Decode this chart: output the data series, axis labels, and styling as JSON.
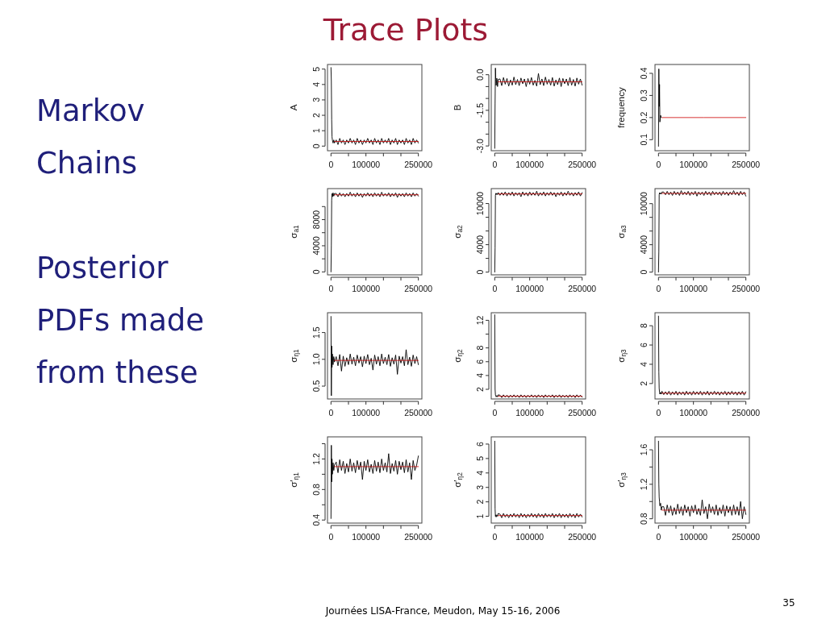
{
  "chart_data": [
    {
      "type": "other",
      "title": "Trace Plots",
      "annotations": [
        "Markov Chains",
        "Posterior PDFs made from these",
        "Journées LISA-France, Meudon, May 15-16, 2006",
        "35"
      ]
    },
    {
      "type": "line",
      "ylabel": "A",
      "x": [
        0,
        1000,
        2000,
        3000,
        4000,
        6000,
        8000,
        10000,
        15000,
        20000,
        25000,
        30000,
        35000,
        40000,
        45000,
        50000,
        55000,
        60000,
        65000,
        70000,
        75000,
        80000,
        85000,
        90000,
        95000,
        100000,
        105000,
        110000,
        115000,
        120000,
        125000,
        130000,
        135000,
        140000,
        145000,
        150000,
        155000,
        160000,
        165000,
        170000,
        175000,
        180000,
        185000,
        190000,
        195000,
        200000,
        205000,
        210000,
        215000,
        220000,
        225000,
        230000,
        235000,
        240000,
        245000,
        250000
      ],
      "xlim": [
        -10000,
        260000
      ],
      "xticks": [
        0,
        {
          "value": 50000,
          "label": null
        },
        100000,
        {
          "value": 150000,
          "label": null
        },
        {
          "value": 200000,
          "label": null
        },
        250000
      ],
      "ylim": [
        -0.3,
        5.3
      ],
      "yticks": [
        0,
        1,
        2,
        3,
        4,
        5
      ],
      "series": [
        {
          "color": "#000000",
          "values": [
            5.1,
            4.2,
            1.7,
            0.6,
            0.4,
            0.2,
            0.4,
            0.2,
            0.4,
            0.1,
            0.5,
            0.2,
            0.4,
            0.1,
            0.4,
            0.2,
            0.5,
            0.2,
            0.4,
            0.1,
            0.5,
            0.2,
            0.4,
            0.1,
            0.4,
            0.2,
            0.5,
            0.2,
            0.4,
            0.1,
            0.5,
            0.2,
            0.4,
            0.1,
            0.5,
            0.2,
            0.4,
            0.2,
            0.5,
            0.1,
            0.4,
            0.2,
            0.5,
            0.1,
            0.4,
            0.2,
            0.4,
            0.1,
            0.5,
            0.2,
            0.4,
            0.1,
            0.5,
            0.2,
            0.4,
            0.2
          ]
        },
        {
          "color": "#cc0000",
          "x": [
            10000,
            130000,
            250000
          ],
          "values": [
            0.3,
            0.3,
            0.3
          ]
        }
      ]
    },
    {
      "type": "line",
      "ylabel": "B",
      "x": [
        0,
        1000,
        2000,
        3000,
        4000,
        6000,
        8000,
        10000,
        15000,
        20000,
        25000,
        30000,
        35000,
        40000,
        45000,
        50000,
        55000,
        60000,
        65000,
        70000,
        75000,
        80000,
        85000,
        90000,
        95000,
        100000,
        105000,
        110000,
        115000,
        120000,
        125000,
        130000,
        135000,
        140000,
        145000,
        150000,
        155000,
        160000,
        165000,
        170000,
        175000,
        180000,
        185000,
        190000,
        195000,
        200000,
        205000,
        210000,
        215000,
        220000,
        225000,
        230000,
        235000,
        240000,
        245000,
        250000
      ],
      "xlim": [
        -10000,
        260000
      ],
      "xticks": [
        0,
        {
          "value": 50000,
          "label": null
        },
        100000,
        {
          "value": 150000,
          "label": null
        },
        {
          "value": 200000,
          "label": null
        },
        250000
      ],
      "ylim": [
        -3.2,
        0.43
      ],
      "yticks": [
        {
          "value": -3,
          "label": "-3.0"
        },
        {
          "value": -2.5,
          "label": null
        },
        {
          "value": -2,
          "label": null
        },
        -1.5,
        {
          "value": -1,
          "label": null
        },
        {
          "value": -0.5,
          "label": null
        },
        {
          "value": 0,
          "label": "0.0"
        }
      ],
      "series": [
        {
          "color": "#000000",
          "values": [
            -3.1,
            -1.2,
            0.28,
            -0.2,
            -0.45,
            -0.15,
            -0.5,
            -0.2,
            -0.18,
            -0.46,
            -0.12,
            -0.4,
            -0.16,
            -0.48,
            -0.22,
            -0.44,
            -0.1,
            -0.42,
            -0.2,
            -0.46,
            -0.14,
            -0.38,
            -0.18,
            -0.5,
            -0.16,
            -0.4,
            -0.12,
            -0.44,
            -0.24,
            -0.48,
            0.05,
            -0.42,
            -0.18,
            -0.46,
            -0.1,
            -0.4,
            -0.2,
            -0.44,
            -0.12,
            -0.48,
            -0.22,
            -0.42,
            -0.14,
            -0.5,
            -0.16,
            -0.38,
            -0.18,
            -0.46,
            -0.12,
            -0.44,
            -0.2,
            -0.48,
            -0.14,
            -0.4,
            -0.18,
            -0.44
          ]
        },
        {
          "color": "#cc0000",
          "x": [
            10000,
            130000,
            250000
          ],
          "values": [
            -0.3,
            -0.3,
            -0.3
          ]
        }
      ]
    },
    {
      "type": "line",
      "ylabel": "frequency",
      "xlim": [
        -10000,
        260000
      ],
      "xticks": [
        0,
        {
          "value": 50000,
          "label": null
        },
        100000,
        {
          "value": 150000,
          "label": null
        },
        {
          "value": 200000,
          "label": null
        },
        250000
      ],
      "ylim": [
        0.05,
        0.44
      ],
      "yticks": [
        0.1,
        0.2,
        0.3,
        0.4
      ],
      "series": [
        {
          "color": "#000000",
          "x": [
            0,
            1000,
            2000,
            3000,
            4000,
            6000,
            8000
          ],
          "values": [
            0.07,
            0.42,
            0.25,
            0.35,
            0.18,
            0.21,
            0.2
          ]
        },
        {
          "color": "#cc0000",
          "x": [
            10000,
            130000,
            250000
          ],
          "values": [
            0.2,
            0.2,
            0.2
          ]
        }
      ]
    },
    {
      "type": "line",
      "ylabel": "σ$_{a1}$",
      "x": [
        0,
        1000,
        2000,
        3000,
        4000,
        6000,
        8000,
        10000,
        15000,
        20000,
        25000,
        30000,
        35000,
        40000,
        45000,
        50000,
        55000,
        60000,
        65000,
        70000,
        75000,
        80000,
        85000,
        90000,
        95000,
        100000,
        105000,
        110000,
        115000,
        120000,
        125000,
        130000,
        135000,
        140000,
        145000,
        150000,
        155000,
        160000,
        165000,
        170000,
        175000,
        180000,
        185000,
        190000,
        195000,
        200000,
        205000,
        210000,
        215000,
        220000,
        225000,
        230000,
        235000,
        240000,
        245000,
        250000
      ],
      "xlim": [
        -10000,
        260000
      ],
      "xticks": [
        0,
        {
          "value": 50000,
          "label": null
        },
        100000,
        {
          "value": 150000,
          "label": null
        },
        {
          "value": 200000,
          "label": null
        },
        250000
      ],
      "ylim": [
        -450,
        12750
      ],
      "yticks": [
        0,
        {
          "value": 2000,
          "label": null
        },
        4000,
        {
          "value": 6000,
          "label": null
        },
        8000,
        {
          "value": 10000,
          "label": null
        }
      ],
      "series": [
        {
          "color": "#000000",
          "values": [
            0,
            4000,
            11000,
            12000,
            11500,
            12100,
            11600,
            12000,
            12000,
            11500,
            12100,
            11600,
            12000,
            11500,
            12000,
            11600,
            12200,
            11600,
            12000,
            11500,
            12100,
            11600,
            12000,
            11400,
            12000,
            11600,
            12100,
            11600,
            12000,
            11500,
            12100,
            11600,
            12000,
            11500,
            12200,
            11600,
            12000,
            11600,
            12100,
            11500,
            12000,
            11600,
            12100,
            11400,
            12000,
            11600,
            12000,
            11500,
            12100,
            11600,
            12000,
            11500,
            12100,
            11600,
            12000,
            11600
          ]
        },
        {
          "color": "#cc0000",
          "x": [
            10000,
            130000,
            250000
          ],
          "values": [
            11800,
            11800,
            11800
          ]
        }
      ]
    },
    {
      "type": "line",
      "ylabel": "σ$_{a2}$",
      "x": [
        0,
        1000,
        2000,
        3000,
        4000,
        6000,
        8000,
        10000,
        15000,
        20000,
        25000,
        30000,
        35000,
        40000,
        45000,
        50000,
        55000,
        60000,
        65000,
        70000,
        75000,
        80000,
        85000,
        90000,
        95000,
        100000,
        105000,
        110000,
        115000,
        120000,
        125000,
        130000,
        135000,
        140000,
        145000,
        150000,
        155000,
        160000,
        165000,
        170000,
        175000,
        180000,
        185000,
        190000,
        195000,
        200000,
        205000,
        210000,
        215000,
        220000,
        225000,
        230000,
        235000,
        240000,
        245000,
        250000
      ],
      "xlim": [
        -10000,
        260000
      ],
      "xticks": [
        0,
        {
          "value": 50000,
          "label": null
        },
        100000,
        {
          "value": 150000,
          "label": null
        },
        {
          "value": 200000,
          "label": null
        },
        250000
      ],
      "ylim": [
        -400,
        12180
      ],
      "yticks": [
        0,
        {
          "value": 2000,
          "label": null
        },
        4000,
        {
          "value": 6000,
          "label": null
        },
        {
          "value": 8000,
          "label": null
        },
        10000
      ],
      "series": [
        {
          "color": "#000000",
          "values": [
            0,
            3500,
            11200,
            11500,
            11300,
            11500,
            11300,
            11600,
            11200,
            11600,
            11200,
            11700,
            11100,
            11600,
            11200,
            11700,
            11100,
            11600,
            11200,
            11600,
            11000,
            11700,
            11200,
            11600,
            11100,
            11700,
            11200,
            11600,
            11200,
            11800,
            11100,
            11600,
            11200,
            11700,
            11100,
            11600,
            11200,
            11700,
            11200,
            11600,
            11000,
            11600,
            11200,
            11700,
            11100,
            11600,
            11200,
            11800,
            11200,
            11600,
            11100,
            11600,
            11200,
            11700,
            11100,
            11600
          ]
        },
        {
          "color": "#cc0000",
          "x": [
            10000,
            130000,
            250000
          ],
          "values": [
            11400,
            11400,
            11400
          ]
        }
      ]
    },
    {
      "type": "line",
      "ylabel": "σ$_{a3}$",
      "x": [
        0,
        1000,
        2000,
        3000,
        4000,
        6000,
        8000,
        10000,
        15000,
        20000,
        25000,
        30000,
        35000,
        40000,
        45000,
        50000,
        55000,
        60000,
        65000,
        70000,
        75000,
        80000,
        85000,
        90000,
        95000,
        100000,
        105000,
        110000,
        115000,
        120000,
        125000,
        130000,
        135000,
        140000,
        145000,
        150000,
        155000,
        160000,
        165000,
        170000,
        175000,
        180000,
        185000,
        190000,
        195000,
        200000,
        205000,
        210000,
        215000,
        220000,
        225000,
        230000,
        235000,
        240000,
        245000,
        250000
      ],
      "xlim": [
        -10000,
        260000
      ],
      "xticks": [
        0,
        {
          "value": 50000,
          "label": null
        },
        100000,
        {
          "value": 150000,
          "label": null
        },
        {
          "value": 200000,
          "label": null
        },
        250000
      ],
      "ylim": [
        -400,
        12200
      ],
      "yticks": [
        0,
        {
          "value": 2000,
          "label": null
        },
        4000,
        {
          "value": 6000,
          "label": null
        },
        {
          "value": 8000,
          "label": null
        },
        10000
      ],
      "series": [
        {
          "color": "#000000",
          "values": [
            0,
            3000,
            11300,
            11600,
            11400,
            11600,
            11400,
            11700,
            11700,
            11300,
            11800,
            11300,
            11700,
            11200,
            11800,
            11300,
            11700,
            11200,
            11900,
            11300,
            11700,
            11300,
            11800,
            11200,
            11700,
            11300,
            11800,
            11100,
            11700,
            11300,
            11700,
            11200,
            11800,
            11300,
            11700,
            11200,
            11800,
            11300,
            11700,
            11300,
            11700,
            11200,
            11800,
            11300,
            11700,
            11200,
            11700,
            11300,
            11900,
            11300,
            11700,
            11200,
            11800,
            11300,
            11700,
            11100
          ]
        },
        {
          "color": "#cc0000",
          "x": [
            10000,
            130000,
            250000
          ],
          "values": [
            11500,
            11500,
            11500
          ]
        }
      ]
    },
    {
      "type": "line",
      "ylabel": "σ$_{η1}$",
      "x": [
        0,
        1000,
        2000,
        3000,
        4000,
        6000,
        8000,
        10000,
        15000,
        20000,
        25000,
        30000,
        35000,
        40000,
        45000,
        50000,
        55000,
        60000,
        65000,
        70000,
        75000,
        80000,
        85000,
        90000,
        95000,
        100000,
        105000,
        110000,
        115000,
        120000,
        125000,
        130000,
        135000,
        140000,
        145000,
        150000,
        155000,
        160000,
        165000,
        170000,
        175000,
        180000,
        185000,
        190000,
        195000,
        200000,
        205000,
        210000,
        215000,
        220000,
        225000,
        230000,
        235000,
        240000,
        245000,
        250000
      ],
      "xlim": [
        -10000,
        260000
      ],
      "xticks": [
        0,
        {
          "value": 50000,
          "label": null
        },
        100000,
        {
          "value": 150000,
          "label": null
        },
        {
          "value": 200000,
          "label": null
        },
        250000
      ],
      "ylim": [
        0.26,
        1.87
      ],
      "yticks": [
        0.5,
        {
          "value": 1,
          "label": "1.0"
        },
        1.5
      ],
      "series": [
        {
          "color": "#000000",
          "values": [
            1.8,
            0.32,
            1.25,
            0.85,
            1.1,
            0.9,
            1.05,
            0.95,
            1.05,
            0.88,
            1.09,
            0.78,
            1.06,
            0.87,
            1.03,
            0.9,
            1.1,
            0.91,
            1.04,
            0.88,
            1.08,
            0.93,
            1.05,
            0.86,
            1.06,
            0.92,
            1.09,
            0.9,
            1.02,
            0.8,
            1.08,
            0.91,
            1.05,
            0.88,
            1.1,
            0.92,
            1.04,
            0.9,
            1.09,
            0.87,
            1.03,
            0.91,
            1.08,
            0.72,
            1.06,
            0.93,
            1.05,
            0.88,
            1.18,
            0.9,
            1.04,
            0.87,
            1.08,
            0.92,
            1.05,
            0.9
          ]
        },
        {
          "color": "#cc0000",
          "x": [
            10000,
            130000,
            250000
          ],
          "values": [
            0.98,
            0.98,
            0.98
          ]
        }
      ]
    },
    {
      "type": "line",
      "ylabel": "σ$_{η2}$",
      "x": [
        0,
        1000,
        2000,
        3000,
        4000,
        6000,
        8000,
        10000,
        15000,
        20000,
        25000,
        30000,
        35000,
        40000,
        45000,
        50000,
        55000,
        60000,
        65000,
        70000,
        75000,
        80000,
        85000,
        90000,
        95000,
        100000,
        105000,
        110000,
        115000,
        120000,
        125000,
        130000,
        135000,
        140000,
        145000,
        150000,
        155000,
        160000,
        165000,
        170000,
        175000,
        180000,
        185000,
        190000,
        195000,
        200000,
        205000,
        210000,
        215000,
        220000,
        225000,
        230000,
        235000,
        240000,
        245000,
        250000
      ],
      "xlim": [
        -10000,
        260000
      ],
      "xticks": [
        0,
        {
          "value": 50000,
          "label": null
        },
        100000,
        {
          "value": 150000,
          "label": null
        },
        {
          "value": 200000,
          "label": null
        },
        250000
      ],
      "ylim": [
        0.6,
        13.1
      ],
      "yticks": [
        2,
        4,
        6,
        8,
        {
          "value": 10,
          "label": null
        },
        12
      ],
      "series": [
        {
          "color": "#000000",
          "values": [
            12.8,
            2.0,
            1.2,
            1.0,
            0.9,
            1.1,
            0.9,
            1.2,
            1.15,
            0.8,
            1.2,
            0.85,
            1.15,
            0.8,
            1.15,
            0.85,
            1.2,
            0.85,
            1.15,
            0.8,
            1.2,
            0.85,
            1.15,
            0.8,
            1.15,
            0.85,
            1.2,
            0.85,
            1.15,
            0.8,
            1.2,
            0.85,
            1.15,
            0.8,
            1.2,
            0.85,
            1.15,
            0.85,
            1.2,
            0.8,
            1.15,
            0.85,
            1.2,
            0.8,
            1.15,
            0.85,
            1.15,
            0.8,
            1.2,
            0.85,
            1.15,
            0.8,
            1.2,
            0.85,
            1.15,
            0.85
          ]
        },
        {
          "color": "#cc0000",
          "x": [
            10000,
            130000,
            250000
          ],
          "values": [
            1.0,
            1.0,
            1.0
          ]
        }
      ]
    },
    {
      "type": "line",
      "ylabel": "σ$_{η3}$",
      "x": [
        0,
        1000,
        2000,
        3000,
        4000,
        6000,
        8000,
        10000,
        15000,
        20000,
        25000,
        30000,
        35000,
        40000,
        45000,
        50000,
        55000,
        60000,
        65000,
        70000,
        75000,
        80000,
        85000,
        90000,
        95000,
        100000,
        105000,
        110000,
        115000,
        120000,
        125000,
        130000,
        135000,
        140000,
        145000,
        150000,
        155000,
        160000,
        165000,
        170000,
        175000,
        180000,
        185000,
        190000,
        195000,
        200000,
        205000,
        210000,
        215000,
        220000,
        225000,
        230000,
        235000,
        240000,
        245000,
        250000
      ],
      "xlim": [
        -10000,
        260000
      ],
      "xticks": [
        0,
        {
          "value": 50000,
          "label": null
        },
        100000,
        {
          "value": 150000,
          "label": null
        },
        {
          "value": 200000,
          "label": null
        },
        250000
      ],
      "ylim": [
        0.4,
        9.35
      ],
      "yticks": [
        2,
        4,
        6,
        8
      ],
      "series": [
        {
          "color": "#000000",
          "values": [
            9.0,
            3.2,
            1.5,
            1.1,
            0.9,
            1.1,
            0.9,
            1.2,
            0.85,
            1.15,
            0.85,
            1.2,
            0.8,
            1.15,
            0.85,
            1.2,
            0.8,
            1.15,
            0.85,
            1.15,
            0.8,
            1.2,
            0.85,
            1.15,
            0.8,
            1.2,
            0.85,
            1.15,
            0.85,
            1.2,
            0.8,
            1.15,
            0.85,
            1.2,
            0.8,
            1.15,
            0.85,
            1.2,
            0.85,
            1.15,
            0.8,
            1.15,
            0.85,
            1.2,
            0.8,
            1.15,
            0.85,
            1.2,
            0.85,
            1.15,
            0.8,
            1.15,
            0.85,
            1.2,
            0.8,
            1.15
          ]
        },
        {
          "color": "#cc0000",
          "x": [
            10000,
            130000,
            250000
          ],
          "values": [
            1.0,
            1.0,
            1.0
          ]
        }
      ]
    },
    {
      "type": "line",
      "ylabel": "σ′$_{η1}$",
      "x": [
        0,
        1000,
        2000,
        3000,
        4000,
        6000,
        8000,
        10000,
        15000,
        20000,
        25000,
        30000,
        35000,
        40000,
        45000,
        50000,
        55000,
        60000,
        65000,
        70000,
        75000,
        80000,
        85000,
        90000,
        95000,
        100000,
        105000,
        110000,
        115000,
        120000,
        125000,
        130000,
        135000,
        140000,
        145000,
        150000,
        155000,
        160000,
        165000,
        170000,
        175000,
        180000,
        185000,
        190000,
        195000,
        200000,
        205000,
        210000,
        215000,
        220000,
        225000,
        230000,
        235000,
        240000,
        245000,
        250000
      ],
      "xlim": [
        -10000,
        260000
      ],
      "xticks": [
        0,
        {
          "value": 50000,
          "label": null
        },
        100000,
        {
          "value": 150000,
          "label": null
        },
        {
          "value": 200000,
          "label": null
        },
        250000
      ],
      "ylim": [
        0.36,
        1.49
      ],
      "yticks": [
        0.4,
        {
          "value": 0.6,
          "label": null
        },
        0.8,
        {
          "value": 1,
          "label": null
        },
        1.2,
        {
          "value": 1.4,
          "label": null
        }
      ],
      "series": [
        {
          "color": "#000000",
          "values": [
            0.42,
            1.38,
            0.9,
            1.2,
            1.0,
            1.15,
            1.05,
            1.12,
            1.16,
            1.02,
            1.19,
            1.05,
            1.17,
            1.01,
            1.14,
            1.03,
            1.2,
            1.04,
            1.15,
            1.02,
            1.18,
            1.06,
            1.16,
            0.93,
            1.17,
            1.05,
            1.19,
            1.03,
            1.13,
            1.01,
            1.18,
            1.04,
            1.16,
            1.02,
            1.2,
            1.05,
            1.15,
            1.03,
            1.27,
            1.01,
            1.14,
            1.04,
            1.18,
            1.0,
            1.17,
            1.06,
            1.16,
            1.02,
            1.19,
            1.03,
            1.15,
            0.93,
            1.18,
            1.05,
            1.12,
            1.24
          ]
        },
        {
          "color": "#cc0000",
          "x": [
            10000,
            130000,
            250000
          ],
          "values": [
            1.1,
            1.1,
            1.1
          ]
        }
      ]
    },
    {
      "type": "line",
      "ylabel": "σ′$_{η2}$",
      "x": [
        0,
        1000,
        2000,
        3000,
        4000,
        6000,
        8000,
        10000,
        15000,
        20000,
        25000,
        30000,
        35000,
        40000,
        45000,
        50000,
        55000,
        60000,
        65000,
        70000,
        75000,
        80000,
        85000,
        90000,
        95000,
        100000,
        105000,
        110000,
        115000,
        120000,
        125000,
        130000,
        135000,
        140000,
        145000,
        150000,
        155000,
        160000,
        165000,
        170000,
        175000,
        180000,
        185000,
        190000,
        195000,
        200000,
        205000,
        210000,
        215000,
        220000,
        225000,
        230000,
        235000,
        240000,
        245000,
        250000
      ],
      "xlim": [
        -10000,
        260000
      ],
      "xticks": [
        0,
        {
          "value": 50000,
          "label": null
        },
        100000,
        {
          "value": 150000,
          "label": null
        },
        {
          "value": 200000,
          "label": null
        },
        250000
      ],
      "ylim": [
        0.53,
        6.5
      ],
      "yticks": [
        1,
        2,
        3,
        4,
        5,
        6
      ],
      "series": [
        {
          "color": "#000000",
          "values": [
            6.2,
            1.5,
            1.0,
            1.1,
            0.95,
            1.1,
            1.0,
            1.2,
            1.15,
            0.9,
            1.2,
            0.95,
            1.15,
            0.9,
            1.15,
            0.95,
            1.2,
            0.95,
            1.15,
            0.9,
            1.2,
            0.95,
            1.15,
            0.9,
            1.15,
            0.95,
            1.2,
            0.95,
            1.15,
            0.9,
            1.2,
            0.95,
            1.15,
            0.9,
            1.2,
            0.95,
            1.15,
            0.95,
            1.2,
            0.9,
            1.15,
            0.95,
            1.2,
            0.9,
            1.15,
            0.95,
            1.15,
            0.9,
            1.2,
            0.95,
            1.15,
            0.9,
            1.2,
            0.95,
            1.15,
            0.95
          ]
        },
        {
          "color": "#cc0000",
          "x": [
            10000,
            130000,
            250000
          ],
          "values": [
            1.05,
            1.05,
            1.05
          ]
        }
      ]
    },
    {
      "type": "line",
      "ylabel": "σ′$_{η3}$",
      "x": [
        0,
        1000,
        2000,
        3000,
        4000,
        6000,
        8000,
        10000,
        15000,
        20000,
        25000,
        30000,
        35000,
        40000,
        45000,
        50000,
        55000,
        60000,
        65000,
        70000,
        75000,
        80000,
        85000,
        90000,
        95000,
        100000,
        105000,
        110000,
        115000,
        120000,
        125000,
        130000,
        135000,
        140000,
        145000,
        150000,
        155000,
        160000,
        165000,
        170000,
        175000,
        180000,
        185000,
        190000,
        195000,
        200000,
        205000,
        210000,
        215000,
        220000,
        225000,
        230000,
        235000,
        240000,
        245000,
        250000
      ],
      "xlim": [
        -10000,
        260000
      ],
      "xticks": [
        0,
        {
          "value": 50000,
          "label": null
        },
        100000,
        {
          "value": 150000,
          "label": null
        },
        {
          "value": 200000,
          "label": null
        },
        250000
      ],
      "ylim": [
        0.75,
        1.75
      ],
      "yticks": [
        0.8,
        {
          "value": 1,
          "label": null
        },
        1.2,
        {
          "value": 1.4,
          "label": null
        },
        1.6
      ],
      "series": [
        {
          "color": "#000000",
          "values": [
            1.7,
            1.2,
            1.05,
            1.0,
            0.95,
            0.98,
            0.9,
            0.94,
            0.94,
            0.84,
            0.96,
            0.87,
            0.95,
            0.84,
            0.93,
            0.85,
            0.97,
            0.86,
            0.94,
            0.84,
            0.96,
            0.87,
            0.94,
            0.83,
            0.95,
            0.87,
            0.96,
            0.85,
            0.92,
            0.84,
            1.02,
            0.86,
            0.94,
            0.8,
            0.97,
            0.87,
            0.94,
            0.85,
            0.96,
            0.84,
            0.93,
            0.86,
            0.96,
            0.83,
            0.95,
            0.87,
            0.94,
            0.84,
            0.96,
            0.85,
            0.94,
            0.84,
            1.0,
            0.8,
            0.94,
            0.85
          ]
        },
        {
          "color": "#cc0000",
          "x": [
            10000,
            130000,
            250000
          ],
          "values": [
            0.9,
            0.9,
            0.9
          ]
        }
      ]
    }
  ]
}
